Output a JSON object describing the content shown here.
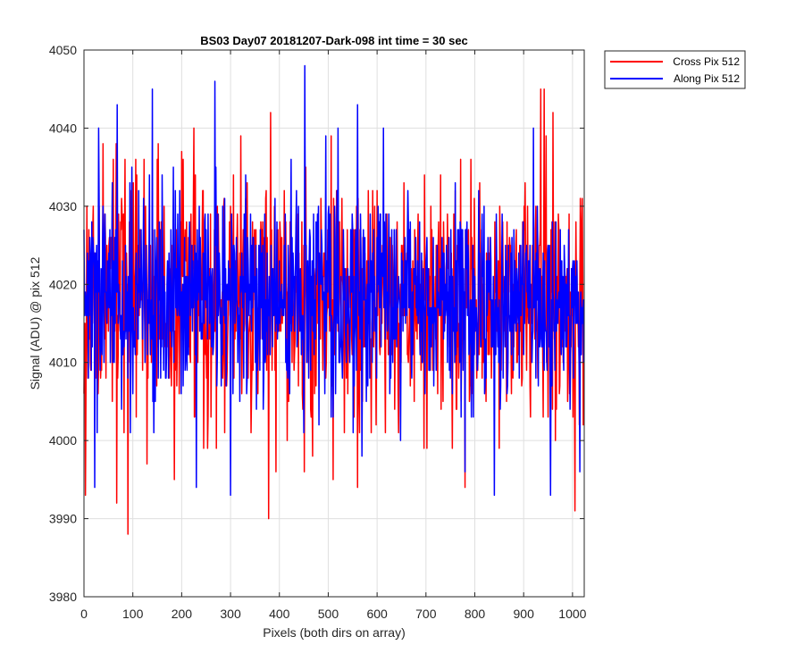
{
  "chart_data": {
    "type": "line",
    "title": "BS03 Day07 20181207-Dark-098 int time = 30 sec",
    "xlabel": "Pixels (both dirs on array)",
    "ylabel": "Signal (ADU) @ pix 512",
    "xlim": [
      0,
      1024
    ],
    "ylim": [
      3980,
      4050
    ],
    "xticks": [
      0,
      100,
      200,
      300,
      400,
      500,
      600,
      700,
      800,
      900,
      1000
    ],
    "yticks": [
      3980,
      3990,
      4000,
      4010,
      4020,
      4030,
      4040,
      4050
    ],
    "grid": true,
    "legend_position": "outside-top-right",
    "series": [
      {
        "name": "Cross Pix 512",
        "color": "#ff0000",
        "noise": {
          "count": 1024,
          "mean": 4018,
          "sd": 7.5,
          "seed": 17
        },
        "points": [
          [
            0,
            4006
          ],
          [
            3,
            3993
          ],
          [
            5,
            4016
          ],
          [
            60,
            4036
          ],
          [
            67,
            3992
          ],
          [
            90,
            3988
          ],
          [
            150,
            4036
          ],
          [
            185,
            3995
          ],
          [
            200,
            4037
          ],
          [
            225,
            4040
          ],
          [
            270,
            4032
          ],
          [
            378,
            3990
          ],
          [
            382,
            4042
          ],
          [
            560,
            3994
          ],
          [
            780,
            3994
          ],
          [
            935,
            4045
          ],
          [
            942,
            4045
          ],
          [
            960,
            4042
          ],
          [
            1005,
            3991
          ],
          [
            1020,
            4031
          ]
        ]
      },
      {
        "name": "Along Pix 512",
        "color": "#0000ff",
        "noise": {
          "count": 1024,
          "mean": 4018,
          "sd": 6.5,
          "seed": 29
        },
        "points": [
          [
            22,
            3994
          ],
          [
            30,
            4040
          ],
          [
            68,
            4043
          ],
          [
            140,
            4045
          ],
          [
            230,
            3994
          ],
          [
            268,
            4046
          ],
          [
            300,
            3993
          ],
          [
            452,
            4048
          ],
          [
            520,
            4040
          ],
          [
            560,
            4043
          ],
          [
            780,
            3996
          ],
          [
            840,
            3993
          ],
          [
            920,
            4040
          ],
          [
            955,
            3993
          ],
          [
            1015,
            3996
          ]
        ]
      }
    ]
  }
}
